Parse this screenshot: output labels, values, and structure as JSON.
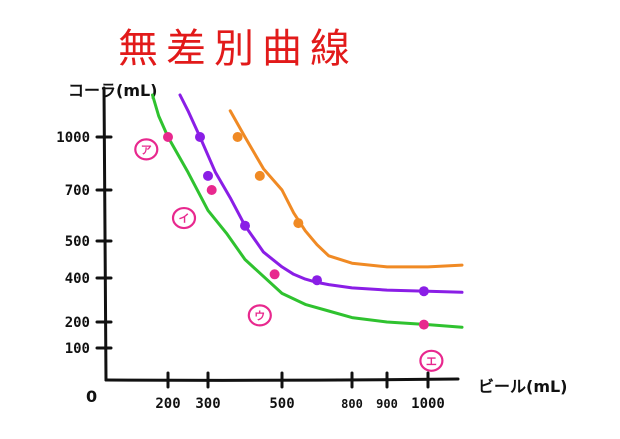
{
  "chart_data": {
    "type": "line",
    "title": "無差別曲線",
    "xlabel": "ビール(mL)",
    "ylabel": "コーラ(mL)",
    "origin_label": "0",
    "x_ticks": [
      {
        "value": 200,
        "label": "200"
      },
      {
        "value": 300,
        "label": "300"
      },
      {
        "value": 500,
        "label": "500"
      },
      {
        "value": 800,
        "label": "800"
      },
      {
        "value": 900,
        "label": "900"
      },
      {
        "value": 1000,
        "label": "1000"
      }
    ],
    "y_ticks": [
      {
        "value": 1000,
        "label": "1000"
      },
      {
        "value": 700,
        "label": "700"
      },
      {
        "value": 500,
        "label": "500"
      },
      {
        "value": 400,
        "label": "400"
      },
      {
        "value": 200,
        "label": "200"
      },
      {
        "value": 100,
        "label": "100"
      }
    ],
    "series": [
      {
        "color": "#2fc22f",
        "x": [
          150,
          170,
          200,
          250,
          300,
          350,
          400,
          500,
          600,
          700,
          800,
          900,
          1000,
          1100
        ],
        "y": [
          1400,
          1200,
          1000,
          800,
          620,
          530,
          450,
          330,
          280,
          250,
          220,
          200,
          190,
          180
        ]
      },
      {
        "color": "#8a1ee6",
        "x": [
          230,
          250,
          280,
          320,
          360,
          400,
          450,
          500,
          550,
          600,
          650,
          700,
          800,
          900,
          1000,
          1100
        ],
        "y": [
          1400,
          1250,
          1000,
          800,
          670,
          560,
          470,
          430,
          410,
          395,
          380,
          370,
          355,
          345,
          340,
          335
        ]
      },
      {
        "color": "#f08a24",
        "x": [
          360,
          400,
          450,
          500,
          550,
          600,
          650,
          700,
          800,
          900,
          1000,
          1100
        ],
        "y": [
          1250,
          1000,
          820,
          700,
          610,
          540,
          490,
          460,
          440,
          430,
          430,
          435
        ]
      }
    ],
    "points": [
      {
        "series": 1,
        "x": 280,
        "y": 1000
      },
      {
        "series": 1,
        "x": 300,
        "y": 780
      },
      {
        "series": 1,
        "x": 400,
        "y": 560
      },
      {
        "series": 1,
        "x": 650,
        "y": 390
      },
      {
        "series": 1,
        "x": 990,
        "y": 340
      },
      {
        "series": 2,
        "x": 380,
        "y": 1000
      },
      {
        "series": 2,
        "x": 440,
        "y": 780
      },
      {
        "series": 2,
        "x": 570,
        "y": 570
      },
      {
        "series": 0,
        "x": 200,
        "y": 1000,
        "color": "#e8288e"
      },
      {
        "series": 0,
        "x": 310,
        "y": 700,
        "color": "#e8288e"
      },
      {
        "series": 0,
        "x": 480,
        "y": 410,
        "color": "#e8288e"
      },
      {
        "series": 0,
        "x": 990,
        "y": 190,
        "color": "#e8288e"
      }
    ],
    "annotations": [
      {
        "text": "ア",
        "x": 130,
        "y": 930
      },
      {
        "text": "イ",
        "x": 240,
        "y": 590
      },
      {
        "text": "ウ",
        "x": 440,
        "y": 230
      },
      {
        "text": "エ",
        "x": 1010,
        "y": 60
      }
    ],
    "colors": {
      "axis": "#111111",
      "title": "#e21a1a",
      "annotation": "#e8288e"
    }
  }
}
